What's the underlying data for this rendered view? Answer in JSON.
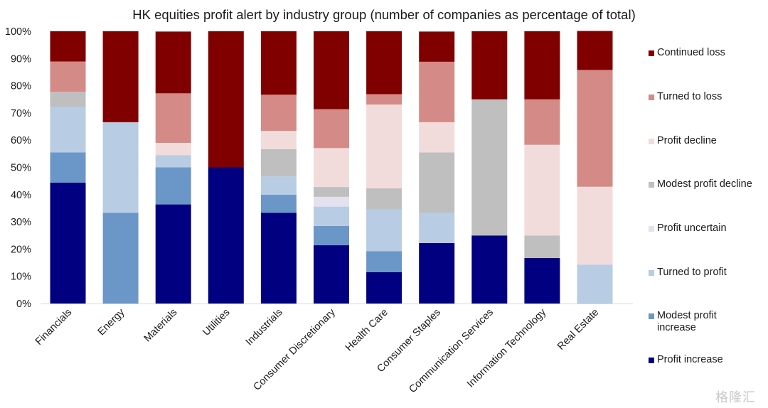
{
  "chart_data": {
    "type": "bar",
    "stacked": true,
    "title": "HK equities profit alert by industry group (number of companies as percentage of total)",
    "xlabel": "",
    "ylabel": "",
    "ylim": [
      0,
      100
    ],
    "yticks": [
      "0%",
      "10%",
      "20%",
      "30%",
      "40%",
      "50%",
      "60%",
      "70%",
      "80%",
      "90%",
      "100%"
    ],
    "legend_position": "right",
    "grid": false,
    "categories": [
      "Financials",
      "Energy",
      "Materials",
      "Utilities",
      "Industrials",
      "Consumer Discretionary",
      "Health Care",
      "Consumer Staples",
      "Communication Services",
      "Information Technology",
      "Real Estate"
    ],
    "series": [
      {
        "name": "Profit increase",
        "color": "#000080",
        "values": [
          44.4,
          0,
          36.4,
          50,
          33.3,
          21.4,
          11.5,
          22.2,
          25,
          16.7,
          0
        ]
      },
      {
        "name": "Modest profit increase",
        "color": "#6b96c8",
        "values": [
          11.1,
          33.3,
          13.6,
          0,
          6.7,
          7.1,
          7.7,
          0,
          0,
          0,
          0
        ]
      },
      {
        "name": "Turned to profit",
        "color": "#b8cce4",
        "values": [
          16.7,
          33.3,
          4.5,
          0,
          6.7,
          7.1,
          15.4,
          11.1,
          0,
          0,
          14.3
        ]
      },
      {
        "name": "Profit uncertain",
        "color": "#e4e0ee",
        "values": [
          0,
          0,
          0,
          0,
          0,
          3.6,
          0,
          0,
          0,
          0,
          0
        ]
      },
      {
        "name": "Modest profit decline",
        "color": "#bfbfbf",
        "values": [
          5.6,
          0,
          0,
          0,
          10,
          3.6,
          7.7,
          22.2,
          50,
          8.3,
          0
        ]
      },
      {
        "name": "Profit decline",
        "color": "#f2dcdb",
        "values": [
          0,
          0,
          4.5,
          0,
          6.7,
          14.3,
          30.8,
          11.1,
          0,
          33.3,
          28.6
        ]
      },
      {
        "name": "Turned to loss",
        "color": "#d48a86",
        "values": [
          11.1,
          0,
          18.2,
          0,
          13.3,
          14.3,
          3.8,
          22.2,
          0,
          16.7,
          42.9
        ]
      },
      {
        "name": "Continued loss",
        "color": "#800000",
        "values": [
          11.1,
          33.4,
          22.7,
          50,
          23.3,
          28.6,
          23.1,
          11.1,
          25,
          25,
          14.3
        ]
      }
    ],
    "legend_order": [
      "Continued loss",
      "Turned to loss",
      "Profit decline",
      "Modest profit decline",
      "Profit uncertain",
      "Turned to profit",
      "Modest profit increase",
      "Profit increase"
    ]
  },
  "watermark": "格隆汇"
}
